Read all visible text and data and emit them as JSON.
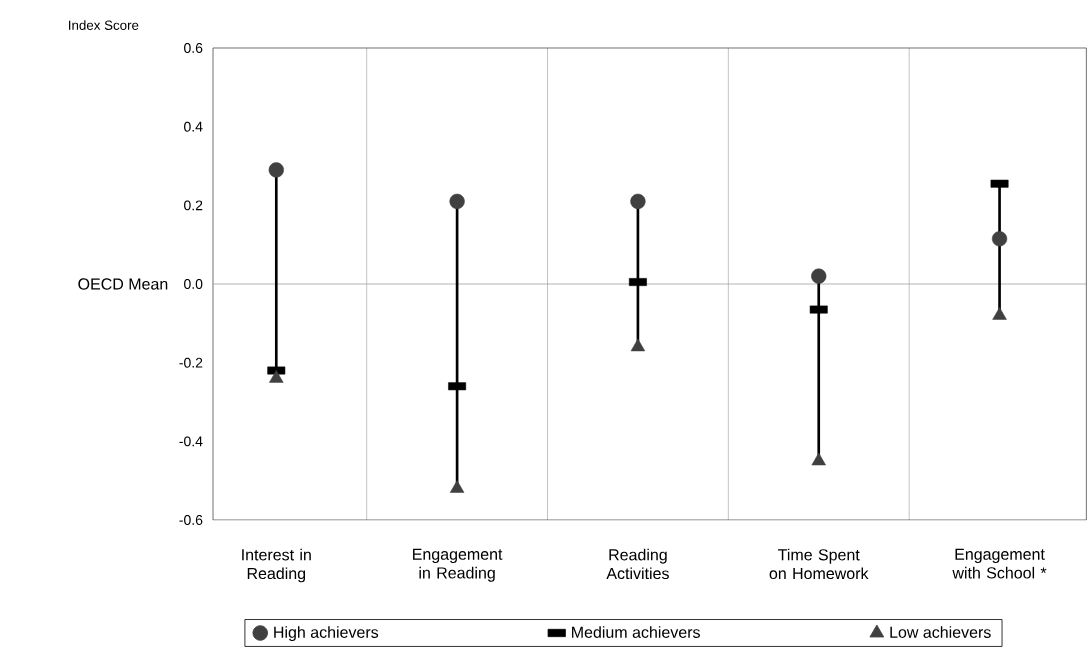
{
  "chart_data": {
    "type": "scatter",
    "ylabel": "Index Score",
    "categories": [
      "Interest in Reading",
      "Engagement in Reading",
      "Reading Activities",
      "Time Spent on Homework",
      "Engagement with School *"
    ],
    "series": [
      {
        "name": "High achievers",
        "color": "#404040",
        "marker": "circle",
        "values": [
          0.29,
          0.21,
          0.21,
          0.02,
          0.115
        ]
      },
      {
        "name": "Medium achievers",
        "color": "#000000",
        "marker": "square",
        "values": [
          -0.22,
          -0.26,
          0.005,
          -0.065,
          0.255
        ]
      },
      {
        "name": "Low achievers",
        "color": "#404040",
        "marker": "triangle",
        "values": [
          -0.24,
          -0.52,
          -0.16,
          -0.45,
          -0.08
        ]
      }
    ],
    "ylim": [
      -0.6,
      0.6
    ],
    "yticks": [
      -0.6,
      -0.4,
      -0.2,
      {
        "value": 0,
        "label": "0.0"
      },
      0.2,
      0.4,
      0.6
    ],
    "ref_lines": [
      {
        "axis": "y",
        "value": 0,
        "label": "OECD Mean",
        "color": "#a0a0a0"
      }
    ],
    "grid": "x",
    "legend": "bottom"
  }
}
